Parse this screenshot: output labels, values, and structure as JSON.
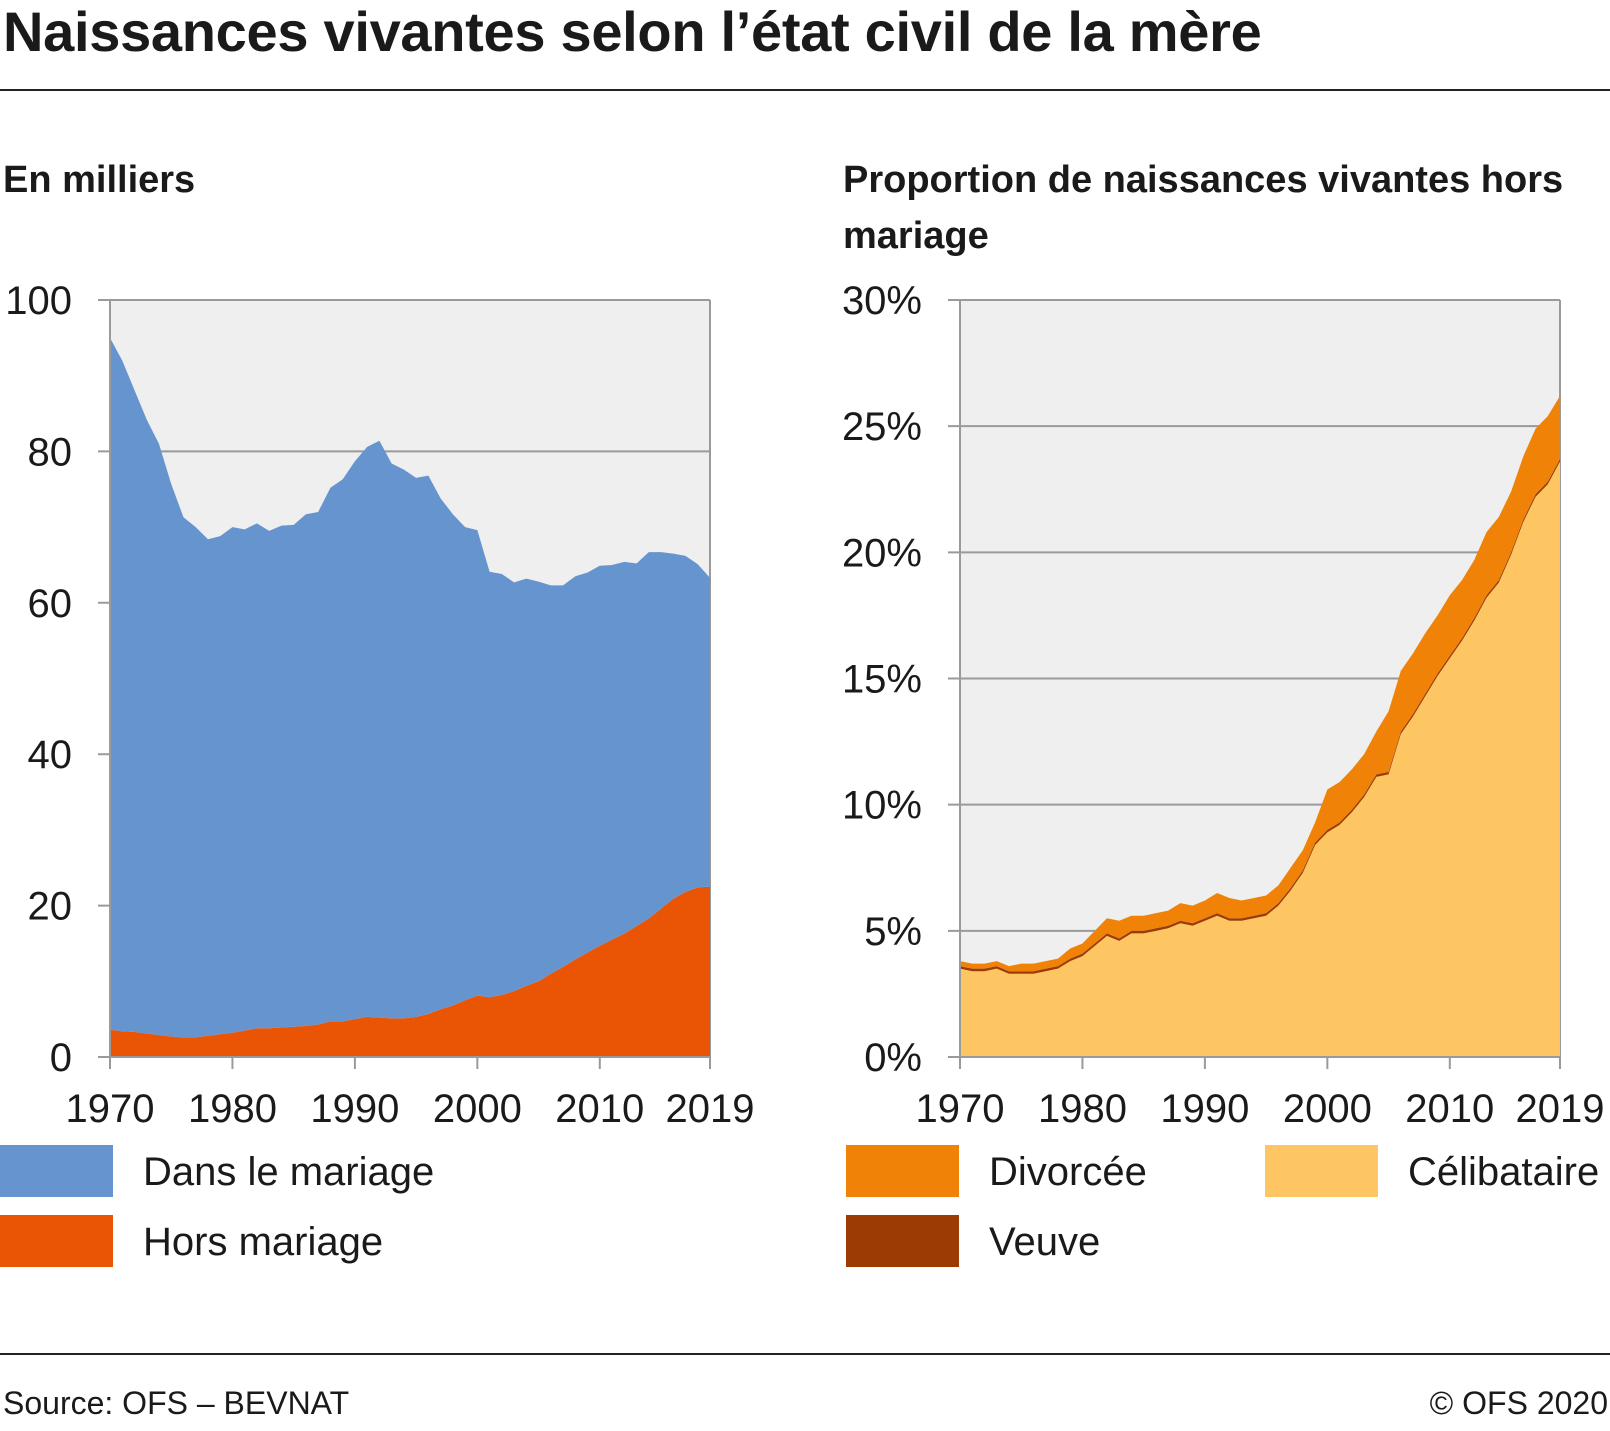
{
  "title": "Naissances vivantes selon l’état civil de la mère",
  "footer": {
    "source": "Source: OFS – BEVNAT",
    "copyright": "© OFS 2020"
  },
  "colors": {
    "dans_le_mariage": "#6694ce",
    "hors_mariage": "#ea5505",
    "divorcee": "#f08207",
    "celibataire": "#fdc663",
    "veuve": "#9c3c04",
    "plot_background": "#efefef",
    "grid": "#9a9a9a"
  },
  "left_legend": [
    {
      "label": "Dans le mariage",
      "color_key": "dans_le_mariage"
    },
    {
      "label": "Hors mariage",
      "color_key": "hors_mariage"
    }
  ],
  "right_legend": [
    {
      "label": "Divorcée",
      "color_key": "divorcee"
    },
    {
      "label": "Célibataire",
      "color_key": "celibataire"
    },
    {
      "label": "Veuve",
      "color_key": "veuve"
    }
  ],
  "chart_data": [
    {
      "type": "area",
      "stacked": true,
      "title": "En milliers",
      "xlabel": "",
      "ylabel": "",
      "xlim": [
        1970,
        2019
      ],
      "ylim": [
        0,
        100
      ],
      "grid": true,
      "legend_position": "bottom",
      "xticks": [
        "1970",
        "1980",
        "1990",
        "2000",
        "2010",
        "2019"
      ],
      "yticks": [
        "0",
        "20",
        "40",
        "60",
        "80",
        "100"
      ],
      "x": [
        1970,
        1971,
        1972,
        1973,
        1974,
        1975,
        1976,
        1977,
        1978,
        1979,
        1980,
        1981,
        1982,
        1983,
        1984,
        1985,
        1986,
        1987,
        1988,
        1989,
        1990,
        1991,
        1992,
        1993,
        1994,
        1995,
        1996,
        1997,
        1998,
        1999,
        2000,
        2001,
        2002,
        2003,
        2004,
        2005,
        2006,
        2007,
        2008,
        2009,
        2010,
        2011,
        2012,
        2013,
        2014,
        2015,
        2016,
        2017,
        2018,
        2019
      ],
      "series": [
        {
          "name": "Hors mariage",
          "color_key": "hors_mariage",
          "values": [
            3.6,
            3.4,
            3.3,
            3.1,
            2.9,
            2.7,
            2.6,
            2.6,
            2.8,
            3.0,
            3.2,
            3.5,
            3.8,
            3.8,
            3.9,
            4.0,
            4.1,
            4.3,
            4.7,
            4.7,
            5.0,
            5.3,
            5.2,
            5.1,
            5.1,
            5.3,
            5.7,
            6.3,
            6.8,
            7.5,
            8.1,
            7.9,
            8.2,
            8.7,
            9.4,
            10.0,
            11.0,
            11.9,
            12.9,
            13.8,
            14.7,
            15.5,
            16.3,
            17.3,
            18.3,
            19.6,
            20.9,
            21.8,
            22.4,
            22.5
          ]
        },
        {
          "name": "Dans le mariage",
          "color_key": "dans_le_mariage",
          "values": [
            91.4,
            88.6,
            84.8,
            81.1,
            78.1,
            73.0,
            68.7,
            67.4,
            65.6,
            65.8,
            66.8,
            66.2,
            66.7,
            65.7,
            66.3,
            66.3,
            67.6,
            67.7,
            70.5,
            71.6,
            73.7,
            75.3,
            76.2,
            73.3,
            72.5,
            71.2,
            71.1,
            67.5,
            64.9,
            62.5,
            61.5,
            56.2,
            55.6,
            54.0,
            53.8,
            52.8,
            51.3,
            50.4,
            50.6,
            50.2,
            50.2,
            49.5,
            49.1,
            47.9,
            48.4,
            47.1,
            45.6,
            44.4,
            42.7,
            40.8
          ]
        }
      ]
    },
    {
      "type": "area",
      "stacked": true,
      "title": "Proportion de naissances vivantes hors mariage",
      "xlabel": "",
      "ylabel": "",
      "xlim": [
        1970,
        2019
      ],
      "ylim": [
        0,
        30
      ],
      "y_unit": "%",
      "grid": true,
      "legend_position": "bottom",
      "xticks": [
        "1970",
        "1980",
        "1990",
        "2000",
        "2010",
        "2019"
      ],
      "yticks": [
        "0%",
        "5%",
        "10%",
        "15%",
        "20%",
        "25%",
        "30%"
      ],
      "x": [
        1970,
        1971,
        1972,
        1973,
        1974,
        1975,
        1976,
        1977,
        1978,
        1979,
        1980,
        1981,
        1982,
        1983,
        1984,
        1985,
        1986,
        1987,
        1988,
        1989,
        1990,
        1991,
        1992,
        1993,
        1994,
        1995,
        1996,
        1997,
        1998,
        1999,
        2000,
        2001,
        2002,
        2003,
        2004,
        2005,
        2006,
        2007,
        2008,
        2009,
        2010,
        2011,
        2012,
        2013,
        2014,
        2015,
        2016,
        2017,
        2018,
        2019
      ],
      "series": [
        {
          "name": "Célibataire",
          "color_key": "celibataire",
          "values": [
            3.5,
            3.4,
            3.4,
            3.5,
            3.3,
            3.3,
            3.3,
            3.4,
            3.5,
            3.8,
            4.0,
            4.4,
            4.8,
            4.6,
            4.9,
            4.9,
            5.0,
            5.1,
            5.3,
            5.2,
            5.4,
            5.6,
            5.4,
            5.4,
            5.5,
            5.6,
            6.0,
            6.6,
            7.3,
            8.4,
            8.9,
            9.2,
            9.7,
            10.3,
            11.1,
            11.2,
            12.8,
            13.5,
            14.3,
            15.1,
            15.8,
            16.5,
            17.3,
            18.2,
            18.8,
            19.9,
            21.2,
            22.2,
            22.7,
            23.6
          ]
        },
        {
          "name": "Veuve",
          "color_key": "veuve",
          "values": [
            0.1,
            0.1,
            0.1,
            0.1,
            0.1,
            0.1,
            0.1,
            0.1,
            0.1,
            0.1,
            0.1,
            0.1,
            0.1,
            0.1,
            0.1,
            0.1,
            0.1,
            0.1,
            0.1,
            0.1,
            0.1,
            0.1,
            0.1,
            0.1,
            0.1,
            0.1,
            0.1,
            0.1,
            0.1,
            0.1,
            0.1,
            0.1,
            0.1,
            0.1,
            0.1,
            0.1,
            0.1,
            0.1,
            0.1,
            0.1,
            0.1,
            0.1,
            0.1,
            0.1,
            0.1,
            0.1,
            0.1,
            0.1,
            0.1,
            0.1
          ]
        },
        {
          "name": "Divorcée",
          "color_key": "divorcee",
          "values": [
            0.2,
            0.2,
            0.2,
            0.2,
            0.2,
            0.3,
            0.3,
            0.3,
            0.3,
            0.4,
            0.4,
            0.5,
            0.6,
            0.7,
            0.6,
            0.6,
            0.6,
            0.6,
            0.7,
            0.7,
            0.7,
            0.8,
            0.8,
            0.7,
            0.7,
            0.7,
            0.7,
            0.8,
            0.8,
            0.8,
            1.6,
            1.6,
            1.6,
            1.6,
            1.7,
            2.4,
            2.4,
            2.4,
            2.4,
            2.3,
            2.4,
            2.3,
            2.3,
            2.5,
            2.5,
            2.4,
            2.5,
            2.6,
            2.6,
            2.5
          ]
        }
      ]
    }
  ]
}
